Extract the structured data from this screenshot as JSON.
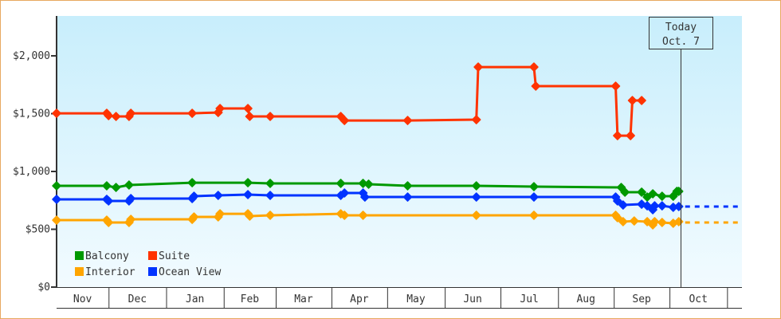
{
  "chart_data": {
    "type": "line",
    "title": "",
    "xlabel": "",
    "ylabel": "",
    "x_unit": "days since chart start",
    "xlim": [
      0,
      369
    ],
    "ylim": [
      0,
      2345
    ],
    "y_ticks": [
      0,
      500,
      1000,
      1500,
      2000
    ],
    "y_tick_labels": [
      "$0",
      "$500",
      "$1,000",
      "$1,500",
      "$2,000"
    ],
    "months": [
      {
        "label": "Nov",
        "start": 0,
        "end": 28
      },
      {
        "label": "Dec",
        "start": 28,
        "end": 59
      },
      {
        "label": "Jan",
        "start": 59,
        "end": 90
      },
      {
        "label": "Feb",
        "start": 90,
        "end": 118
      },
      {
        "label": "Mar",
        "start": 118,
        "end": 148
      },
      {
        "label": "Apr",
        "start": 148,
        "end": 178
      },
      {
        "label": "May",
        "start": 178,
        "end": 209
      },
      {
        "label": "Jun",
        "start": 209,
        "end": 239
      },
      {
        "label": "Jul",
        "start": 239,
        "end": 270
      },
      {
        "label": "Aug",
        "start": 270,
        "end": 300
      },
      {
        "label": "Sep",
        "start": 300,
        "end": 330
      },
      {
        "label": "Oct",
        "start": 330,
        "end": 361
      },
      {
        "label": "",
        "start": 361,
        "end": 369
      }
    ],
    "today": {
      "day": 336,
      "line1": "Today",
      "line2": "Oct. 7"
    },
    "legend_placement": "bottom-left",
    "grid": false,
    "series": [
      {
        "name": "Balcony",
        "color": "#009900",
        "projection": null,
        "points": [
          [
            0,
            876
          ],
          [
            27,
            876
          ],
          [
            32,
            862
          ],
          [
            39,
            883
          ],
          [
            73,
            903
          ],
          [
            103,
            903
          ],
          [
            115,
            897
          ],
          [
            153,
            897
          ],
          [
            165,
            897
          ],
          [
            168,
            890
          ],
          [
            189,
            876
          ],
          [
            226,
            876
          ],
          [
            257,
            869
          ],
          [
            304,
            862
          ],
          [
            306,
            821
          ],
          [
            315,
            821
          ],
          [
            318,
            779
          ],
          [
            321,
            807
          ],
          [
            326,
            786
          ],
          [
            332,
            786
          ],
          [
            334,
            828
          ],
          [
            335,
            828
          ]
        ]
      },
      {
        "name": "Suite",
        "color": "#ff3300",
        "projection": null,
        "points": [
          [
            0,
            1503
          ],
          [
            27,
            1503
          ],
          [
            28,
            1483
          ],
          [
            32,
            1476
          ],
          [
            39,
            1476
          ],
          [
            40,
            1503
          ],
          [
            73,
            1503
          ],
          [
            87,
            1510
          ],
          [
            88,
            1545
          ],
          [
            103,
            1545
          ],
          [
            104,
            1476
          ],
          [
            115,
            1476
          ],
          [
            153,
            1476
          ],
          [
            155,
            1441
          ],
          [
            189,
            1441
          ],
          [
            226,
            1448
          ],
          [
            227,
            1903
          ],
          [
            257,
            1903
          ],
          [
            258,
            1738
          ],
          [
            301,
            1738
          ],
          [
            302,
            1310
          ],
          [
            309,
            1310
          ],
          [
            310,
            1614
          ],
          [
            315,
            1614
          ]
        ]
      },
      {
        "name": "Interior",
        "color": "#ffa500",
        "projection": 559,
        "points": [
          [
            0,
            579
          ],
          [
            27,
            579
          ],
          [
            28,
            559
          ],
          [
            39,
            559
          ],
          [
            40,
            586
          ],
          [
            73,
            586
          ],
          [
            74,
            607
          ],
          [
            87,
            607
          ],
          [
            88,
            634
          ],
          [
            103,
            634
          ],
          [
            104,
            614
          ],
          [
            115,
            621
          ],
          [
            153,
            634
          ],
          [
            155,
            621
          ],
          [
            165,
            621
          ],
          [
            226,
            621
          ],
          [
            257,
            621
          ],
          [
            301,
            621
          ],
          [
            302,
            600
          ],
          [
            305,
            566
          ],
          [
            311,
            572
          ],
          [
            318,
            566
          ],
          [
            321,
            538
          ],
          [
            322,
            566
          ],
          [
            326,
            559
          ],
          [
            332,
            552
          ],
          [
            335,
            566
          ]
        ]
      },
      {
        "name": "Ocean View",
        "color": "#0033ff",
        "projection": 697,
        "points": [
          [
            0,
            759
          ],
          [
            27,
            759
          ],
          [
            28,
            745
          ],
          [
            39,
            745
          ],
          [
            40,
            766
          ],
          [
            73,
            766
          ],
          [
            74,
            786
          ],
          [
            87,
            793
          ],
          [
            103,
            800
          ],
          [
            115,
            793
          ],
          [
            153,
            793
          ],
          [
            155,
            814
          ],
          [
            165,
            814
          ],
          [
            166,
            779
          ],
          [
            189,
            779
          ],
          [
            226,
            779
          ],
          [
            257,
            779
          ],
          [
            301,
            779
          ],
          [
            302,
            745
          ],
          [
            305,
            710
          ],
          [
            315,
            717
          ],
          [
            318,
            703
          ],
          [
            321,
            669
          ],
          [
            322,
            703
          ],
          [
            326,
            703
          ],
          [
            332,
            690
          ],
          [
            335,
            697
          ]
        ]
      }
    ]
  }
}
